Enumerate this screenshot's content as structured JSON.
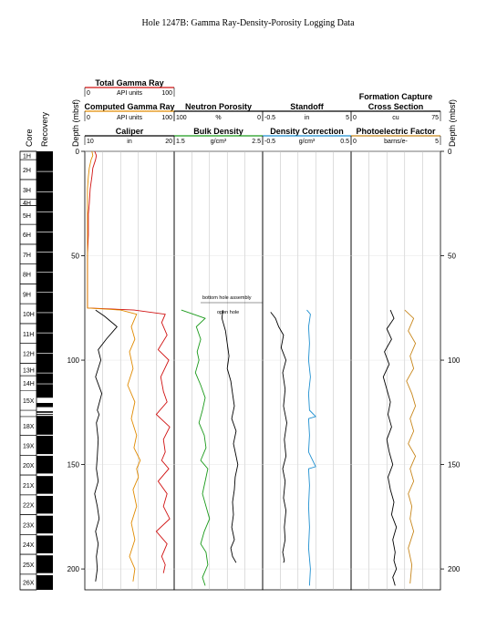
{
  "chart_data": {
    "type": "line",
    "title": "Hole 1247B: Gamma Ray-Density-Porosity Logging Data",
    "depth_axis": {
      "label": "Depth (mbsf)",
      "range": [
        0,
        210
      ],
      "ticks": [
        0,
        50,
        100,
        150,
        200
      ],
      "ticks_text": [
        "0",
        "50",
        "100",
        "150",
        "200"
      ]
    },
    "core_column": {
      "label": "Core",
      "cores": [
        {
          "name": "1H",
          "top": 0,
          "bottom": 4
        },
        {
          "name": "2H",
          "top": 4,
          "bottom": 13.5
        },
        {
          "name": "3H",
          "top": 13.5,
          "bottom": 23
        },
        {
          "name": "4H",
          "top": 23,
          "bottom": 26
        },
        {
          "name": "5H",
          "top": 26,
          "bottom": 35
        },
        {
          "name": "6H",
          "top": 35,
          "bottom": 44.5
        },
        {
          "name": "7H",
          "top": 44.5,
          "bottom": 54
        },
        {
          "name": "8H",
          "top": 54,
          "bottom": 63.5
        },
        {
          "name": "9H",
          "top": 63.5,
          "bottom": 73
        },
        {
          "name": "10H",
          "top": 73,
          "bottom": 82.5
        },
        {
          "name": "11H",
          "top": 82.5,
          "bottom": 92
        },
        {
          "name": "12H",
          "top": 92,
          "bottom": 101.5
        },
        {
          "name": "13H",
          "top": 101.5,
          "bottom": 107.5
        },
        {
          "name": "14H",
          "top": 107.5,
          "bottom": 114.5
        },
        {
          "name": "15X",
          "top": 114.5,
          "bottom": 124
        },
        {
          "name": "18X",
          "top": 127,
          "bottom": 136
        },
        {
          "name": "19X",
          "top": 136,
          "bottom": 145.5
        },
        {
          "name": "20X",
          "top": 145.5,
          "bottom": 155
        },
        {
          "name": "21X",
          "top": 155,
          "bottom": 164.5
        },
        {
          "name": "22X",
          "top": 164.5,
          "bottom": 174
        },
        {
          "name": "23X",
          "top": 174,
          "bottom": 183.5
        },
        {
          "name": "24X",
          "top": 183.5,
          "bottom": 193
        },
        {
          "name": "25X",
          "top": 193,
          "bottom": 202.5
        },
        {
          "name": "26X",
          "top": 202.5,
          "bottom": 210
        }
      ]
    },
    "recovery_column": {
      "label": "Recovery",
      "recovered": [
        [
          0,
          9.5
        ],
        [
          9.8,
          19.2
        ],
        [
          19.5,
          28.8
        ],
        [
          29.1,
          38.5
        ],
        [
          38.8,
          48.1
        ],
        [
          48.4,
          57.8
        ],
        [
          58.1,
          67.4
        ],
        [
          67.7,
          77.1
        ],
        [
          77.4,
          86.8
        ],
        [
          87.1,
          96.5
        ],
        [
          96.8,
          106
        ],
        [
          106.3,
          111.2
        ],
        [
          111.5,
          118
        ],
        [
          120.5,
          122.5
        ],
        [
          124.5,
          125.2
        ],
        [
          125.8,
          126.2
        ],
        [
          126.7,
          135.7
        ],
        [
          136.2,
          145
        ],
        [
          145.8,
          154.3
        ],
        [
          155.5,
          164
        ],
        [
          165,
          173.5
        ],
        [
          174.5,
          183
        ],
        [
          184,
          192.5
        ],
        [
          193.5,
          202
        ],
        [
          203,
          210
        ]
      ]
    },
    "tracks": [
      {
        "headers": [
          {
            "name": "Total Gamma Ray",
            "color": "#d01010",
            "min": "0",
            "unit": "API units",
            "max": "100"
          },
          {
            "name": "Computed Gamma Ray",
            "color": "#e08a00",
            "min": "0",
            "unit": "API units",
            "max": "100"
          },
          {
            "name": "Caliper",
            "color": "#000000",
            "min": "10",
            "unit": "in",
            "max": "20"
          }
        ]
      },
      {
        "headers": [
          {
            "name": "Neutron Porosity",
            "color": "#000000",
            "min": "100",
            "unit": "%",
            "max": "0"
          },
          {
            "name": "Bulk Density",
            "color": "#1a9a1a",
            "min": "1.5",
            "unit": "g/cm³",
            "max": "2.5"
          }
        ],
        "annotations": [
          "bottom hole assembly",
          "open hole"
        ]
      },
      {
        "headers": [
          {
            "name": "Standoff",
            "color": "#000000",
            "min": "-0.5",
            "unit": "in",
            "max": "5"
          },
          {
            "name": "Density Correction",
            "color": "#1e8fd0",
            "min": "-0.5",
            "unit": "g/cm³",
            "max": "0.5"
          }
        ]
      },
      {
        "headers": [
          {
            "name": "Formation Capture Cross Section",
            "color": "#000000",
            "min": "0",
            "unit": "cu",
            "max": "75"
          },
          {
            "name": "Photoelectric Factor",
            "color": "#c8861a",
            "min": "0",
            "unit": "barns/e-",
            "max": "5"
          }
        ]
      }
    ],
    "series": [
      {
        "name": "Total Gamma Ray",
        "x": [
          11,
          13,
          12,
          9,
          8,
          6,
          5,
          4,
          4,
          3,
          3,
          3,
          3,
          3,
          3,
          3,
          55,
          90,
          86,
          92,
          82,
          94,
          85,
          88,
          92,
          80,
          95,
          88,
          90,
          86,
          94,
          82,
          92,
          88,
          95,
          80,
          92,
          86,
          90,
          88
        ],
        "y": [
          0,
          2,
          4,
          8,
          12,
          18,
          25,
          30,
          40,
          50,
          55,
          60,
          65,
          70,
          73,
          75,
          76,
          78,
          82,
          88,
          95,
          100,
          108,
          115,
          120,
          126,
          132,
          138,
          144,
          148,
          152,
          158,
          164,
          170,
          176,
          182,
          188,
          194,
          198,
          202
        ]
      },
      {
        "name": "Computed Gamma Ray",
        "x": [
          8,
          9,
          7,
          5,
          4,
          3,
          3,
          3,
          3,
          3,
          3,
          3,
          3,
          40,
          58,
          52,
          56,
          50,
          54,
          48,
          56,
          52,
          58,
          55,
          62,
          58,
          60,
          54,
          58,
          52,
          56,
          50,
          56,
          54
        ],
        "y": [
          0,
          2,
          4,
          8,
          12,
          18,
          30,
          45,
          55,
          62,
          68,
          72,
          75,
          76,
          78,
          84,
          90,
          96,
          104,
          112,
          120,
          128,
          136,
          142,
          148,
          152,
          156,
          162,
          170,
          178,
          186,
          194,
          200,
          206
        ]
      },
      {
        "name": "Caliper",
        "x": [
          11.2,
          12.2,
          13.6,
          12.4,
          11.5,
          11.8,
          11.2,
          11.9,
          11.4,
          11.6,
          11.3,
          11.5,
          11.4,
          11.3,
          11.5,
          11.1,
          11.4,
          11.6,
          11.2,
          11.5,
          11.3,
          11.4,
          11.2
        ],
        "y": [
          76,
          79,
          84,
          90,
          95,
          100,
          108,
          116,
          124,
          126,
          130,
          138,
          146,
          152,
          158,
          164,
          170,
          176,
          182,
          188,
          194,
          200,
          206
        ]
      },
      {
        "name": "Neutron Porosity",
        "x": [
          45,
          46,
          42,
          40,
          38,
          40,
          36,
          34,
          32,
          35,
          30,
          33,
          30,
          28,
          31,
          32,
          34,
          33,
          35,
          32,
          36,
          34,
          30
        ],
        "y": [
          76,
          80,
          86,
          92,
          98,
          104,
          110,
          116,
          122,
          128,
          134,
          140,
          146,
          150,
          156,
          162,
          168,
          174,
          180,
          186,
          190,
          194,
          197
        ]
      },
      {
        "name": "Bulk Density",
        "x": [
          1.58,
          1.85,
          1.75,
          1.8,
          1.76,
          1.78,
          1.74,
          1.8,
          1.85,
          1.82,
          1.78,
          1.84,
          1.86,
          1.8,
          1.88,
          1.85,
          1.82,
          1.86,
          1.9,
          1.84,
          1.8,
          1.86,
          1.88,
          1.82,
          1.85
        ],
        "y": [
          76,
          80,
          84,
          90,
          96,
          100,
          106,
          112,
          118,
          124,
          130,
          136,
          142,
          148,
          152,
          158,
          164,
          170,
          176,
          182,
          188,
          192,
          198,
          204,
          208
        ]
      },
      {
        "name": "Standoff",
        "x": [
          0.0,
          0.3,
          0.5,
          0.8,
          0.65,
          0.95,
          0.75,
          0.9,
          0.8,
          1.0,
          0.85,
          0.95,
          0.75,
          0.9,
          0.8,
          0.95,
          0.85,
          0.9,
          0.75,
          0.85,
          0.8
        ],
        "y": [
          77,
          80,
          84,
          88,
          94,
          100,
          106,
          114,
          122,
          130,
          138,
          146,
          152,
          158,
          166,
          172,
          180,
          186,
          192,
          196,
          197
        ]
      },
      {
        "name": "Density Correction",
        "x": [
          0.0,
          0.04,
          0.02,
          0.03,
          0.02,
          0.04,
          0.02,
          0.03,
          0.1,
          0.02,
          0.03,
          0.02,
          0.1,
          0.02,
          0.03,
          0.02,
          0.03,
          0.02,
          0.04,
          0.03
        ],
        "y": [
          76,
          78,
          84,
          92,
          100,
          108,
          116,
          124,
          127,
          128,
          136,
          144,
          151,
          152,
          160,
          170,
          180,
          190,
          200,
          208
        ]
      },
      {
        "name": "Formation Capture Cross Section",
        "x": [
          33,
          36,
          30,
          34,
          28,
          32,
          27,
          30,
          33,
          31,
          34,
          30,
          32,
          35,
          31,
          33,
          36,
          34,
          38,
          35,
          37,
          36,
          38,
          35,
          37
        ],
        "y": [
          76,
          80,
          85,
          90,
          96,
          102,
          108,
          114,
          120,
          126,
          132,
          138,
          144,
          150,
          156,
          162,
          168,
          174,
          180,
          186,
          192,
          196,
          200,
          204,
          208
        ]
      },
      {
        "name": "Photoelectric Factor",
        "x": [
          3.0,
          3.5,
          3.2,
          3.6,
          3.3,
          3.5,
          3.1,
          3.4,
          3.6,
          3.3,
          3.5,
          3.2,
          3.6,
          3.3,
          3.5,
          3.2,
          3.4,
          3.3,
          3.5,
          3.2,
          3.4,
          3.3
        ],
        "y": [
          76,
          80,
          86,
          92,
          98,
          104,
          110,
          116,
          122,
          128,
          134,
          140,
          146,
          152,
          158,
          164,
          170,
          176,
          182,
          190,
          198,
          207
        ]
      }
    ]
  }
}
